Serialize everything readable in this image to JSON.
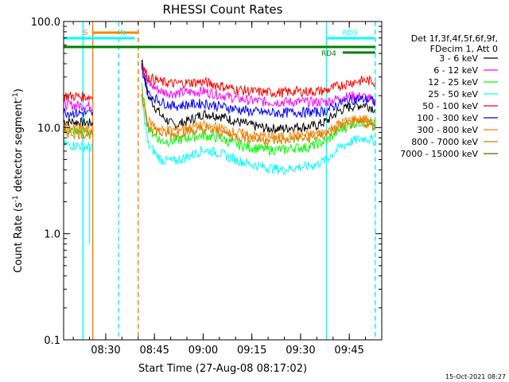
{
  "chart_data": {
    "type": "line",
    "title": "RHESSI Count Rates",
    "xlabel": "Start Time (27-Aug-08 08:17:02)",
    "ylabel": "Count Rate (s",
    "ylabel_sup1": "-1",
    "ylabel_mid": " detector segment",
    "ylabel_sup2": "-1",
    "ylabel_end": ")",
    "y_scale": "log",
    "ylim": [
      0.1,
      100.0
    ],
    "xlim": [
      "08:17:02",
      "09:55:00"
    ],
    "x_ticks": [
      "08:30",
      "08:45",
      "09:00",
      "09:15",
      "09:30",
      "09:45"
    ],
    "y_ticks": [
      "0.1",
      "1.0",
      "10.0",
      "100.0"
    ],
    "grid": false,
    "legend_position": "right",
    "legend_header": [
      "Det 1f,3f,4f,5f,6f,9f,",
      "FDecim 1, Att 0"
    ],
    "x_times": [
      "08:17",
      "08:26",
      "08:40",
      "08:41",
      "08:43",
      "08:47",
      "08:51",
      "08:55",
      "09:00",
      "09:05",
      "09:10",
      "09:15",
      "09:20",
      "09:25",
      "09:28",
      "09:32",
      "09:35",
      "09:38",
      "09:42",
      "09:46",
      "09:50",
      "09:53"
    ],
    "series": [
      {
        "name": "3 - 6 keV",
        "color": "#000000",
        "values": [
          11.5,
          11.0,
          null,
          45.0,
          20.0,
          13.0,
          10.5,
          11.5,
          13.5,
          13.0,
          11.5,
          10.5,
          9.8,
          9.8,
          10.2,
          10.2,
          10.5,
          11.5,
          14.5,
          16.0,
          16.5,
          15.0
        ]
      },
      {
        "name": "6 - 12 keV",
        "color": "#ff00ff",
        "values": [
          16.5,
          16.0,
          null,
          42.0,
          26.0,
          22.0,
          21.0,
          21.5,
          22.0,
          20.5,
          19.0,
          18.0,
          17.5,
          17.5,
          17.5,
          17.5,
          17.5,
          17.5,
          19.0,
          20.0,
          19.5,
          17.5
        ]
      },
      {
        "name": "12 - 25 keV",
        "color": "#00ff00",
        "values": [
          9.5,
          9.0,
          null,
          25.0,
          10.0,
          7.5,
          7.5,
          8.0,
          8.5,
          8.0,
          7.0,
          6.5,
          6.2,
          6.2,
          6.5,
          6.5,
          7.0,
          7.5,
          9.5,
          11.0,
          11.5,
          10.5
        ]
      },
      {
        "name": "25 - 50 keV",
        "color": "#00ffff",
        "values": [
          7.0,
          6.5,
          null,
          20.0,
          7.0,
          5.0,
          4.8,
          5.3,
          6.2,
          5.8,
          5.0,
          4.5,
          4.2,
          4.0,
          4.2,
          4.3,
          4.5,
          5.0,
          6.5,
          7.5,
          8.0,
          7.5
        ]
      },
      {
        "name": "50 - 100 keV",
        "color": "#ff0000",
        "values": [
          20.0,
          19.5,
          null,
          40.0,
          30.0,
          27.0,
          26.0,
          26.5,
          27.0,
          25.0,
          23.0,
          22.0,
          21.5,
          21.5,
          22.0,
          22.0,
          22.0,
          22.5,
          25.0,
          27.0,
          28.0,
          27.0
        ]
      },
      {
        "name": "100 - 300 keV",
        "color": "#0000ff",
        "values": [
          14.0,
          13.5,
          null,
          38.0,
          21.0,
          17.5,
          16.0,
          16.5,
          17.0,
          16.0,
          15.0,
          14.2,
          13.8,
          13.8,
          14.0,
          14.0,
          14.0,
          14.5,
          17.0,
          18.5,
          18.5,
          17.5
        ]
      },
      {
        "name": "300 - 800 keV",
        "color": "#ff8000",
        "values": [
          10.0,
          9.5,
          null,
          22.0,
          11.5,
          9.5,
          9.5,
          10.0,
          10.5,
          10.0,
          9.0,
          8.5,
          8.2,
          8.2,
          8.5,
          8.5,
          8.8,
          9.2,
          11.0,
          12.0,
          12.0,
          11.0
        ]
      },
      {
        "name": "800 - 7000 keV",
        "color": "#d08000",
        "values": [
          9.0,
          8.6,
          null,
          19.0,
          10.5,
          8.8,
          8.7,
          9.2,
          9.6,
          9.2,
          8.3,
          7.9,
          7.6,
          7.6,
          7.9,
          7.9,
          8.2,
          8.6,
          10.2,
          11.0,
          11.0,
          10.2
        ]
      },
      {
        "name": "7000 - 15000 keV",
        "color": "#805000",
        "values": [
          null,
          null,
          null,
          null,
          null,
          null,
          null,
          null,
          null,
          null,
          null,
          null,
          null,
          null,
          null,
          null,
          null,
          null,
          null,
          null,
          null,
          null
        ]
      }
    ],
    "top_bars": [
      {
        "label": "S",
        "color": "#ff8000",
        "start": "08:26",
        "end": "08:40",
        "level": 88
      },
      {
        "label": "N",
        "color": "#00ffff",
        "start": "08:17",
        "end": "08:39",
        "level": 70
      },
      {
        "label": "",
        "color": "#008000",
        "start": "08:17",
        "end": "09:53",
        "level": 55
      },
      {
        "label": "RD0",
        "color": "#00ffff",
        "start": "09:38",
        "end": "09:53",
        "level": 70
      },
      {
        "label": "RD4",
        "color": "#008000",
        "start": "09:43",
        "end": "09:53",
        "level": 49
      }
    ],
    "vertical_markers": [
      {
        "time": "08:23",
        "color": "#00ffff",
        "style": "solid"
      },
      {
        "time": "08:26",
        "color": "#ff8000",
        "style": "solid"
      },
      {
        "time": "08:34",
        "color": "#00ffff",
        "style": "dashed"
      },
      {
        "time": "08:40",
        "color": "#ff8000",
        "style": "dashed"
      },
      {
        "time": "09:38",
        "color": "#00ffff",
        "style": "solid"
      },
      {
        "time": "09:53",
        "color": "#00ffff",
        "style": "dashed"
      }
    ],
    "timestamp": "15-Oct-2021 08:27"
  }
}
